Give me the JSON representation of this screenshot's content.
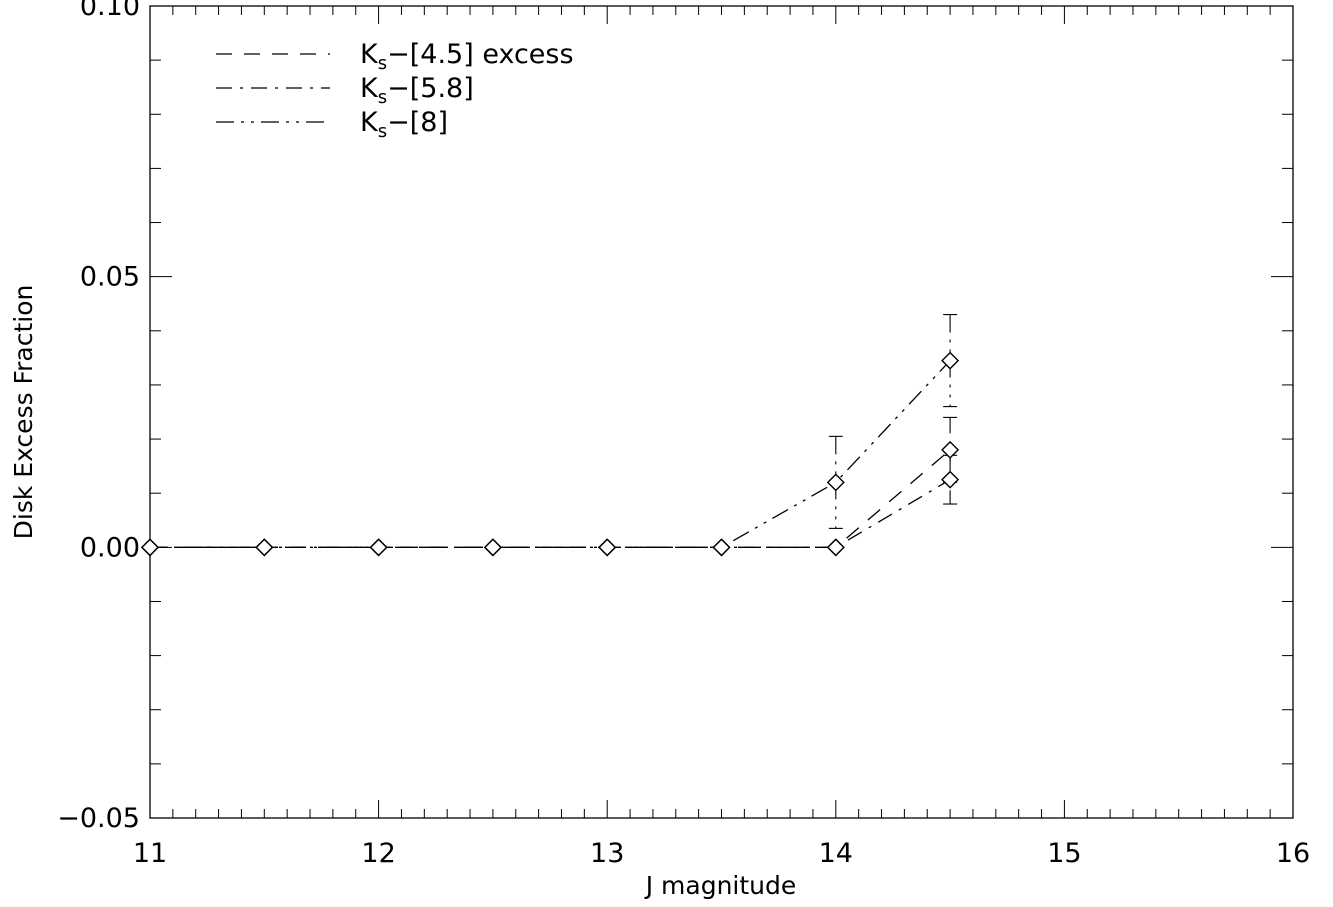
{
  "chart_data": {
    "type": "line",
    "title": "",
    "xlabel": "J magnitude",
    "ylabel": "Disk Excess Fraction",
    "xlim": [
      11,
      16
    ],
    "ylim": [
      -0.05,
      0.1
    ],
    "x_ticks": [
      11,
      12,
      13,
      14,
      15,
      16
    ],
    "x_tick_labels": [
      "11",
      "12",
      "13",
      "14",
      "15",
      "16"
    ],
    "y_ticks": [
      -0.05,
      0.0,
      0.05,
      0.1
    ],
    "y_tick_labels": [
      "−0.05",
      "0.00",
      "0.05",
      "0.10"
    ],
    "grid": false,
    "legend_position": "top-left",
    "marker": "diamond",
    "series": [
      {
        "name": "Ks−[4.5] excess",
        "legend_main": "K",
        "legend_sub": "s",
        "legend_rest": "−[4.5] excess",
        "linestyle": "dashed",
        "x": [
          11.0,
          11.5,
          12.0,
          12.5,
          13.0,
          13.5,
          14.0,
          14.5
        ],
        "y": [
          0.0,
          0.0,
          0.0,
          0.0,
          0.0,
          0.0,
          0.0,
          0.018
        ],
        "yerr": [
          0,
          0,
          0,
          0,
          0,
          0,
          0,
          0.006
        ]
      },
      {
        "name": "Ks−[5.8]",
        "legend_main": "K",
        "legend_sub": "s",
        "legend_rest": "−[5.8]",
        "linestyle": "dashdot",
        "x": [
          11.0,
          11.5,
          12.0,
          12.5,
          13.0,
          13.5,
          14.0,
          14.5
        ],
        "y": [
          0.0,
          0.0,
          0.0,
          0.0,
          0.0,
          0.0,
          0.0,
          0.0125
        ],
        "yerr": [
          0,
          0,
          0,
          0,
          0,
          0,
          0,
          0.0045
        ]
      },
      {
        "name": "Ks−[8]",
        "legend_main": "K",
        "legend_sub": "s",
        "legend_rest": "−[8]",
        "linestyle": "dashdotdot",
        "x": [
          11.0,
          11.5,
          12.0,
          12.5,
          13.0,
          13.5,
          14.0,
          14.5
        ],
        "y": [
          0.0,
          0.0,
          0.0,
          0.0,
          0.0,
          0.0,
          0.012,
          0.0345
        ],
        "yerr": [
          0,
          0,
          0,
          0,
          0,
          0,
          0.0085,
          0.0085
        ]
      }
    ]
  }
}
